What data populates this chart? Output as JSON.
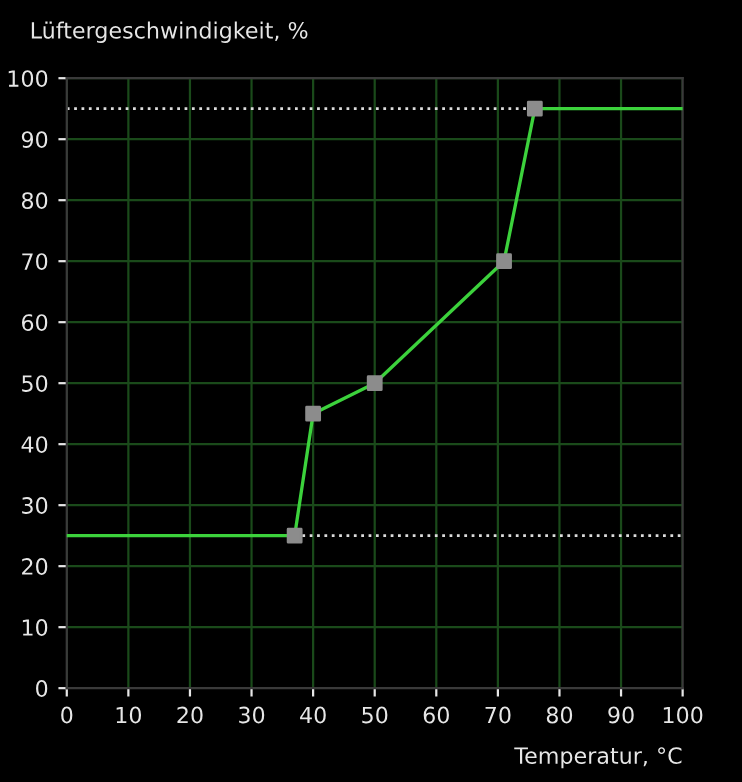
{
  "chart_data": {
    "type": "line",
    "xlabel": "Temperatur, °C",
    "ylabel": "Lüftergeschwindigkeit, %",
    "xlim": [
      0,
      100
    ],
    "ylim": [
      0,
      100
    ],
    "xticks": [
      0,
      10,
      20,
      30,
      40,
      50,
      60,
      70,
      80,
      90,
      100
    ],
    "yticks": [
      0,
      10,
      20,
      30,
      40,
      50,
      60,
      70,
      80,
      90,
      100
    ],
    "grid": true,
    "legend": false,
    "series": [
      {
        "color": "#3cd23c",
        "marker": "none",
        "line_style": "solid",
        "x": [
          0,
          37,
          40,
          50,
          71,
          76,
          100
        ],
        "values": [
          25,
          25,
          45,
          50,
          70,
          95,
          95
        ]
      },
      {
        "type": "scatter",
        "color": "#8c8c8c",
        "marker": "square",
        "x": [
          37,
          40,
          50,
          71,
          76
        ],
        "values": [
          25,
          45,
          50,
          70,
          95
        ]
      }
    ],
    "ref_lines": [
      {
        "axis": "y",
        "value": 95,
        "color": "#dcdcdc",
        "line_style": "dotted"
      },
      {
        "axis": "y",
        "value": 25,
        "color": "#dcdcdc",
        "line_style": "dotted"
      }
    ]
  }
}
